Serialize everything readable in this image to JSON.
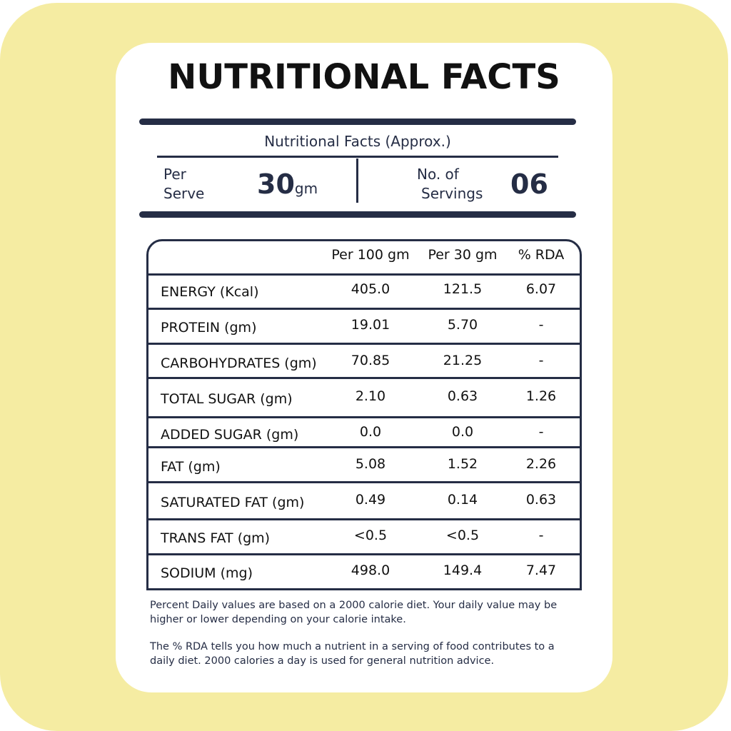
{
  "title": "NUTRITIONAL FACTS",
  "serving": {
    "heading": "Nutritional Facts (Approx.)",
    "per_serve_label": [
      "Per",
      "Serve"
    ],
    "per_serve_value": "30",
    "per_serve_unit": "gm",
    "servings_label": [
      "No. of",
      "Servings"
    ],
    "servings_value": "06"
  },
  "table": {
    "columns": [
      "Per 100 gm",
      "Per 30 gm",
      "% RDA"
    ],
    "rows": [
      [
        "ENERGY (Kcal)",
        "405.0",
        "121.5",
        "6.07"
      ],
      [
        "PROTEIN (gm)",
        "19.01",
        "5.70",
        "-"
      ],
      [
        "CARBOHYDRATES (gm)",
        "70.85",
        "21.25",
        "-"
      ],
      [
        "TOTAL SUGAR (gm)",
        "2.10",
        "0.63",
        "1.26"
      ],
      [
        "ADDED SUGAR (gm)",
        "0.0",
        "0.0",
        "-"
      ],
      [
        "FAT (gm)",
        "5.08",
        "1.52",
        "2.26"
      ],
      [
        "SATURATED FAT (gm)",
        "0.49",
        "0.14",
        "0.63"
      ],
      [
        "TRANS FAT (gm)",
        "<0.5",
        "<0.5",
        "-"
      ],
      [
        "SODIUM (mg)",
        "498.0",
        "149.4",
        "7.47"
      ]
    ]
  },
  "notes": [
    "Percent Daily values are based on a 2000 calorie diet. Your daily value may be higher or lower depending on your calorie intake.",
    "The % RDA tells you how much a nutrient in a serving of food contributes to a daily diet. 2000 calories a day is used for general nutrition advice."
  ]
}
